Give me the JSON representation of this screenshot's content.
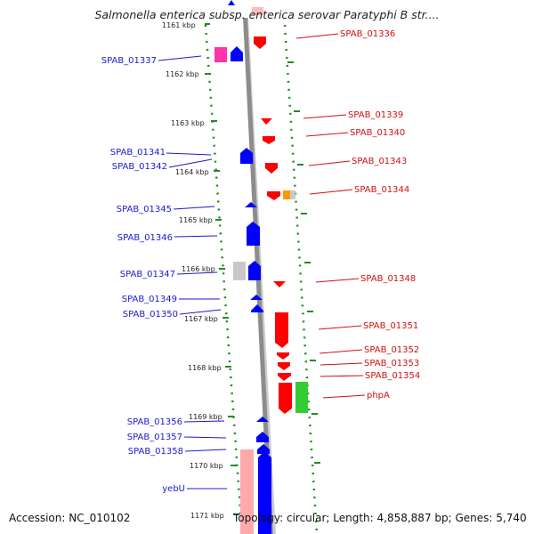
{
  "title": "Salmonella enterica subsp. enterica serovar Paratyphi B str....",
  "footer": {
    "accession": "Accession: NC_010102",
    "topology": "Topology: circular; Length: 4,858,887 bp; Genes: 5,740"
  },
  "colors": {
    "forward_strand": "#0000ff",
    "reverse_strand": "#ff0000",
    "pseudogene": "#c8c8c8",
    "rna": "#ff9900",
    "highlight_magenta": "#ff33aa",
    "highlight_green": "#33cc33",
    "pink": "#ffaaaa",
    "ruler_green": "#228b22",
    "backbone": "#999999",
    "left_label": "#1a1ad0",
    "right_label": "#d01010"
  },
  "kbp_labels": [
    "1161 kbp",
    "1162 kbp",
    "1163 kbp",
    "1164 kbp",
    "1165 kbp",
    "1166 kbp",
    "1167 kbp",
    "1168 kbp",
    "1169 kbp",
    "1170 kbp",
    "1171 kbp"
  ],
  "left_genes": [
    "SPAB_01337",
    "SPAB_01341",
    "SPAB_01342",
    "SPAB_01345",
    "SPAB_01346",
    "SPAB_01347",
    "SPAB_01349",
    "SPAB_01350",
    "SPAB_01356",
    "SPAB_01357",
    "SPAB_01358",
    "yebU"
  ],
  "right_genes": [
    "SPAB_01336",
    "SPAB_01339",
    "SPAB_01340",
    "SPAB_01343",
    "SPAB_01344",
    "SPAB_01348",
    "SPAB_01351",
    "SPAB_01352",
    "SPAB_01353",
    "SPAB_01354",
    "phpA"
  ]
}
